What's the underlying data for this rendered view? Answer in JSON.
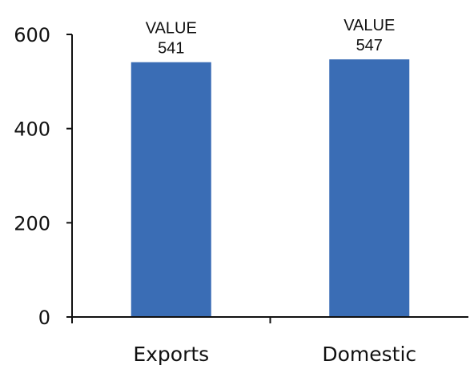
{
  "chart_data": {
    "type": "bar",
    "categories": [
      "Exports",
      "Domestic"
    ],
    "values": [
      541,
      547
    ],
    "data_labels": [
      {
        "caption": "VALUE",
        "value": "541"
      },
      {
        "caption": "VALUE",
        "value": "547"
      }
    ],
    "yticks": [
      "0",
      "200",
      "400",
      "600"
    ],
    "ylim": [
      0,
      600
    ],
    "title": "",
    "xlabel": "",
    "ylabel": "",
    "grid": false,
    "legend": "none",
    "bar_color": "#3a6db5"
  }
}
